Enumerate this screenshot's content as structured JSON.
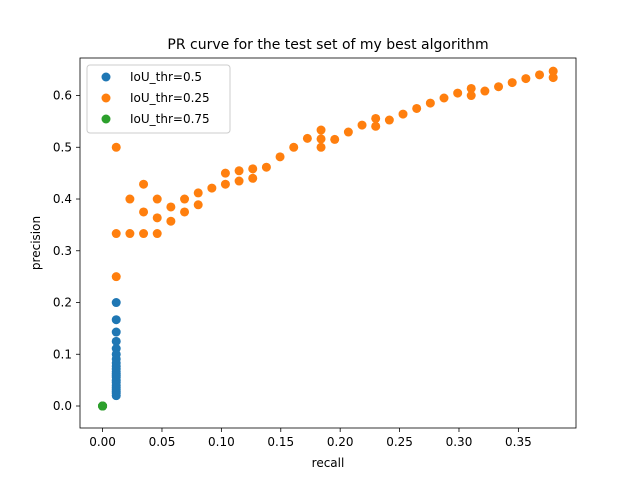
{
  "chart_data": {
    "type": "scatter",
    "title": "PR curve for the test set of my best algorithm",
    "xlabel": "recall",
    "ylabel": "precision",
    "xlim": [
      -0.019,
      0.3985
    ],
    "ylim": [
      -0.0425,
      0.6725
    ],
    "xticks": [
      0.0,
      0.05,
      0.1,
      0.15,
      0.2,
      0.25,
      0.3,
      0.35
    ],
    "xtick_labels": [
      "0.00",
      "0.05",
      "0.10",
      "0.15",
      "0.20",
      "0.25",
      "0.30",
      "0.35"
    ],
    "yticks": [
      0.0,
      0.1,
      0.2,
      0.3,
      0.4,
      0.5,
      0.6
    ],
    "ytick_labels": [
      "0.0",
      "0.1",
      "0.2",
      "0.3",
      "0.4",
      "0.5",
      "0.6"
    ],
    "grid": false,
    "legend_position": "top-left",
    "series": [
      {
        "name": "IoU_thr=0.5",
        "color": "#1f77b4",
        "x": [
          0.0,
          0.0,
          0.0,
          0.0115,
          0.0115,
          0.0115,
          0.0115,
          0.0115,
          0.0115,
          0.0115,
          0.0115,
          0.0115,
          0.0115,
          0.0115,
          0.0115,
          0.0115,
          0.0115,
          0.0115,
          0.0115,
          0.0115,
          0.0115,
          0.0115,
          0.0115,
          0.0115,
          0.0115
        ],
        "y": [
          0.0,
          0.0,
          0.0,
          0.2,
          0.1667,
          0.1429,
          0.125,
          0.1111,
          0.1,
          0.0909,
          0.0833,
          0.0769,
          0.0714,
          0.0667,
          0.0625,
          0.0588,
          0.0556,
          0.05,
          0.0455,
          0.04,
          0.0357,
          0.0323,
          0.0286,
          0.025,
          0.02
        ]
      },
      {
        "name": "IoU_thr=0.25",
        "color": "#ff7f0e",
        "x": [
          0.0,
          0.0115,
          0.0115,
          0.0115,
          0.023,
          0.023,
          0.0345,
          0.0345,
          0.0345,
          0.046,
          0.046,
          0.046,
          0.0575,
          0.0575,
          0.069,
          0.069,
          0.0805,
          0.0805,
          0.092,
          0.1034,
          0.1034,
          0.1149,
          0.1149,
          0.1264,
          0.1264,
          0.1379,
          0.1494,
          0.1609,
          0.1724,
          0.1839,
          0.1839,
          0.1839,
          0.1954,
          0.2069,
          0.2184,
          0.2299,
          0.2299,
          0.2414,
          0.2529,
          0.2644,
          0.2759,
          0.2874,
          0.2989,
          0.3103,
          0.3103,
          0.3218,
          0.3333,
          0.3448,
          0.3563,
          0.3678,
          0.3793,
          0.3793
        ],
        "y": [
          0.0,
          0.5,
          0.3333,
          0.25,
          0.4,
          0.3333,
          0.4286,
          0.375,
          0.3333,
          0.4,
          0.3636,
          0.3333,
          0.3846,
          0.3571,
          0.4,
          0.375,
          0.4118,
          0.3889,
          0.4211,
          0.45,
          0.4286,
          0.4545,
          0.4348,
          0.4583,
          0.44,
          0.4615,
          0.4815,
          0.5,
          0.5172,
          0.5333,
          0.5161,
          0.5,
          0.5152,
          0.5294,
          0.5429,
          0.5556,
          0.5405,
          0.5526,
          0.5641,
          0.575,
          0.5854,
          0.5952,
          0.6047,
          0.6136,
          0.6,
          0.6087,
          0.617,
          0.625,
          0.6327,
          0.64,
          0.6471,
          0.6346
        ]
      },
      {
        "name": "IoU_thr=0.75",
        "color": "#2ca02c",
        "x": [
          0.0,
          0.0,
          0.0
        ],
        "y": [
          0.0,
          0.0,
          0.0
        ]
      }
    ]
  }
}
